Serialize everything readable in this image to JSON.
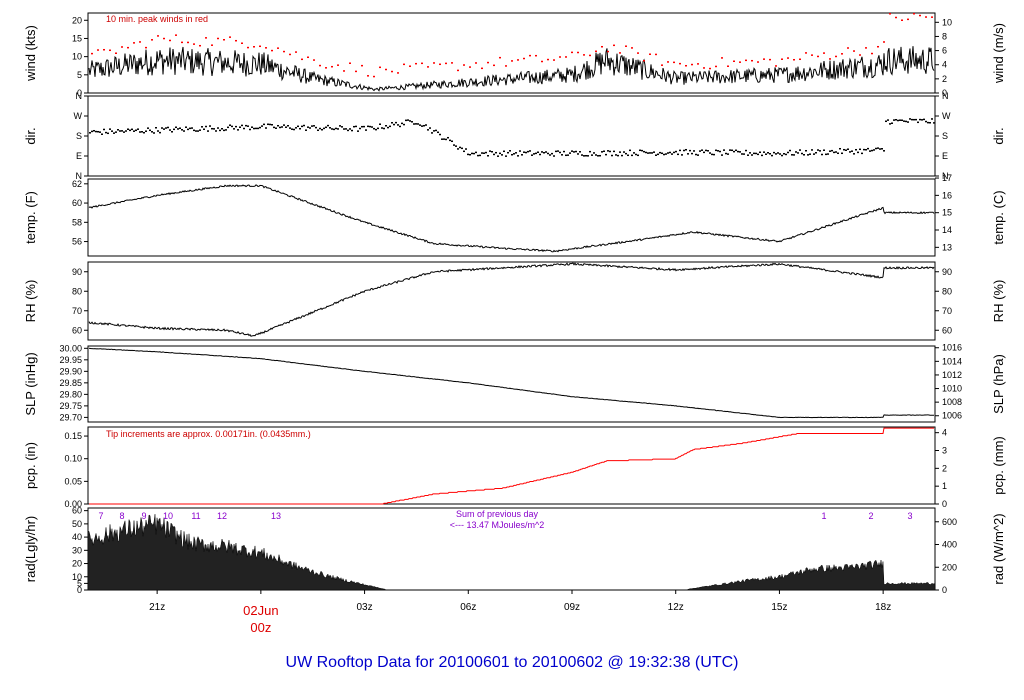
{
  "title": "UW Rooftop Data for 20100601  to  20100602 @ 19:32:38  (UTC)",
  "colors": {
    "line": "#000000",
    "peak": "#ff0000",
    "precip": "#ff0000",
    "annotation_red": "#cc0000",
    "annotation_purple": "#8800cc",
    "footer": "#0000cc"
  },
  "x_axis": {
    "ticks": [
      "21z",
      "00z",
      "03z",
      "06z",
      "09z",
      "12z",
      "15z",
      "18z"
    ],
    "day_label": "02Jun"
  },
  "panels": {
    "wind": {
      "left_label": "wind (kts)",
      "right_label": "wind (m/s)",
      "left_ticks": [
        "0",
        "5",
        "10",
        "15",
        "20"
      ],
      "right_ticks": [
        "0",
        "2",
        "4",
        "6",
        "8",
        "10"
      ],
      "annotation": "10 min. peak winds in red"
    },
    "dir": {
      "left_label": "dir.",
      "right_label": "dir.",
      "left_ticks": [
        "N",
        "E",
        "S",
        "W",
        "N"
      ],
      "right_ticks": [
        "N",
        "E",
        "S",
        "W",
        "N"
      ]
    },
    "temp": {
      "left_label": "temp. (F)",
      "right_label": "temp. (C)",
      "left_ticks": [
        "56",
        "58",
        "60",
        "62"
      ],
      "right_ticks": [
        "13",
        "14",
        "15",
        "16",
        "17"
      ]
    },
    "rh": {
      "left_label": "RH (%)",
      "right_label": "RH (%)",
      "left_ticks": [
        "60",
        "70",
        "80",
        "90"
      ],
      "right_ticks": [
        "60",
        "70",
        "80",
        "90"
      ]
    },
    "slp": {
      "left_label": "SLP (inHg)",
      "right_label": "SLP (hPa)",
      "left_ticks": [
        "29.70",
        "29.75",
        "29.80",
        "29.85",
        "29.90",
        "29.95",
        "30.00"
      ],
      "right_ticks": [
        "1006",
        "1008",
        "1010",
        "1012",
        "1014",
        "1016"
      ]
    },
    "pcp": {
      "left_label": "pcp. (in)",
      "right_label": "pcp. (mm)",
      "left_ticks": [
        "0.00",
        "0.05",
        "0.10",
        "0.15"
      ],
      "right_ticks": [
        "0",
        "1",
        "2",
        "3",
        "4"
      ],
      "annotation": "Tip increments are approx. 0.00171in. (0.0435mm.)"
    },
    "rad": {
      "left_label": "rad(Lgly/hr)",
      "right_label": "rad (W/m^2)",
      "left_ticks": [
        "0",
        "5",
        "10",
        "20",
        "30",
        "40",
        "50",
        "60"
      ],
      "right_ticks": [
        "0",
        "200",
        "400",
        "600"
      ],
      "hour_markers_left": [
        "7",
        "8",
        "9",
        "10",
        "11",
        "12",
        "13"
      ],
      "hour_markers_right": [
        "1",
        "2",
        "3"
      ],
      "sum_label": "Sum of previous day",
      "sum_value": "<--- 13.47  MJoules/m^2"
    }
  },
  "chart_data": [
    {
      "type": "line",
      "title": "",
      "ylabel": "wind (kts)",
      "ylabel_right": "wind (m/s)",
      "ylim": [
        0,
        22
      ],
      "x": [
        "19.0z",
        "21z",
        "00z",
        "01.5z",
        "03.3z",
        "06z",
        "09z",
        "10z",
        "12z",
        "15z",
        "18z",
        "19.5z"
      ],
      "series": [
        {
          "values": [
            6,
            9,
            8,
            4,
            1,
            3,
            5,
            9,
            4,
            5,
            8,
            9
          ]
        },
        {
          "name": "10 min. peak winds in red",
          "values": [
            10,
            15,
            14,
            9,
            6,
            8,
            10,
            13,
            8,
            9,
            13,
            21
          ]
        }
      ]
    },
    {
      "type": "scatter",
      "ylabel": "dir.",
      "ylabel_right": "dir.",
      "ylim": [
        0,
        360
      ],
      "x": [
        "19.0z",
        "21z",
        "00z",
        "03z",
        "04.5z",
        "06z",
        "09z",
        "12z",
        "15z",
        "18z",
        "19.5z"
      ],
      "series": [
        {
          "values": [
            200,
            210,
            225,
            215,
            250,
            105,
            105,
            110,
            105,
            120,
            250
          ]
        }
      ]
    },
    {
      "type": "line",
      "ylabel": "temp. (F)",
      "ylabel_right": "temp. (C)",
      "ylim": [
        54.5,
        62.5
      ],
      "x": [
        "19.0z",
        "21z",
        "23z",
        "00z",
        "03z",
        "05z",
        "07z",
        "08.5z",
        "11z",
        "12.5z",
        "15z",
        "18z",
        "19.3z",
        "19.5z"
      ],
      "series": [
        {
          "values": [
            59.5,
            60.8,
            61.8,
            61.8,
            58.0,
            55.8,
            55.3,
            55.0,
            56.2,
            57.0,
            56.0,
            59.5,
            62.0,
            59.0
          ]
        }
      ]
    },
    {
      "type": "line",
      "ylabel": "RH (%)",
      "ylabel_right": "RH (%)",
      "ylim": [
        55,
        95
      ],
      "x": [
        "19.0z",
        "21z",
        "23z",
        "23.8z",
        "03z",
        "05z",
        "08z",
        "09z",
        "12z",
        "15z",
        "18z",
        "19.2z",
        "19.5z"
      ],
      "series": [
        {
          "values": [
            64,
            61,
            60,
            57,
            80,
            90,
            93,
            94,
            91,
            94,
            87,
            82,
            92
          ]
        }
      ]
    },
    {
      "type": "line",
      "ylabel": "SLP (inHg)",
      "ylabel_right": "SLP (hPa)",
      "ylim": [
        29.68,
        30.01
      ],
      "x": [
        "19.0z",
        "21z",
        "00z",
        "03z",
        "06z",
        "09z",
        "12z",
        "15z",
        "18z",
        "19.5z"
      ],
      "series": [
        {
          "values": [
            30.0,
            29.985,
            29.955,
            29.9,
            29.85,
            29.79,
            29.75,
            29.7,
            29.7,
            29.71
          ]
        }
      ]
    },
    {
      "type": "line",
      "ylabel": "pcp. (in)",
      "ylabel_right": "pcp. (mm)",
      "ylim": [
        0,
        0.17
      ],
      "x": [
        "19.0z",
        "03.5z",
        "05z",
        "07z",
        "09z",
        "10z",
        "12z",
        "12.5z",
        "14z",
        "15.5z",
        "18z",
        "19.3z",
        "19.5z"
      ],
      "series": [
        {
          "values": [
            0.0,
            0.0,
            0.022,
            0.035,
            0.07,
            0.095,
            0.1,
            0.12,
            0.135,
            0.155,
            0.155,
            0.155,
            0.167
          ]
        }
      ]
    },
    {
      "type": "area",
      "ylabel": "rad(Lgly/hr)",
      "ylabel_right": "rad (W/m^2)",
      "ylim": [
        0,
        62
      ],
      "x": [
        "19.0z",
        "20z",
        "21z",
        "22z",
        "23z",
        "00z",
        "01z",
        "02z",
        "03z",
        "03.7z",
        "12.2z",
        "14z",
        "15z",
        "16z",
        "17z",
        "18z",
        "19z",
        "19.5z"
      ],
      "series": [
        {
          "values": [
            38,
            45,
            50,
            35,
            33,
            28,
            18,
            10,
            4,
            0,
            0,
            7,
            10,
            16,
            17,
            20,
            16,
            5
          ]
        }
      ]
    }
  ]
}
